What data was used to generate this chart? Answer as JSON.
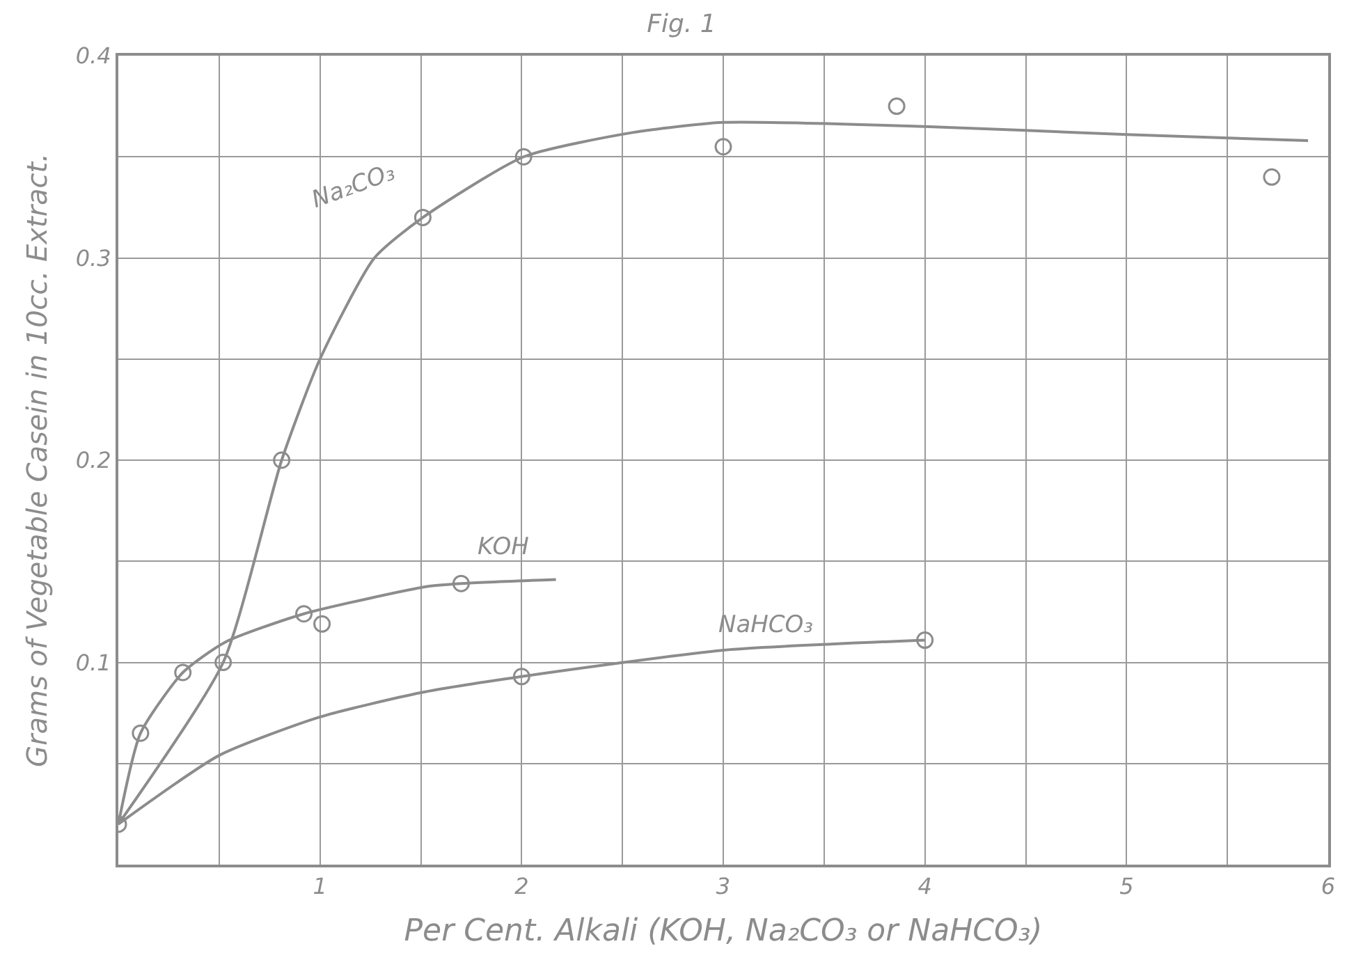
{
  "chart_data": {
    "type": "line",
    "title": "Fig. 1",
    "xlabel": "Per Cent. Alkali (KOH, Na₂CO₃ or NaHCO₃)",
    "ylabel": "Grams of Vegetable Casein in 10cc. Extract.",
    "series": [
      {
        "name": "Na₂CO₃",
        "color": "#8c8c8c",
        "marker": "none",
        "x": [
          0,
          0.52,
          0.81,
          1.0,
          1.27,
          1.51,
          2.01,
          2.55,
          3.0,
          4.0,
          5.0,
          5.9
        ],
        "values": [
          0.02,
          0.1,
          0.2,
          0.25,
          0.3,
          0.32,
          0.35,
          0.362,
          0.367,
          0.365,
          0.361,
          0.358
        ]
      },
      {
        "type": "scatter",
        "color": "#8c8c8c",
        "x": [
          0,
          0.52,
          0.81,
          1.51,
          2.01,
          3.0,
          3.86,
          5.72
        ],
        "values": [
          0.02,
          0.1,
          0.2,
          0.32,
          0.35,
          0.355,
          0.375,
          0.34
        ]
      },
      {
        "name": "KOH",
        "color": "#8c8c8c",
        "marker": "none",
        "x": [
          0,
          0.11,
          0.32,
          0.53,
          0.92,
          1.53,
          1.7,
          2.17
        ],
        "values": [
          0.02,
          0.065,
          0.095,
          0.11,
          0.124,
          0.1375,
          0.139,
          0.141
        ]
      },
      {
        "type": "scatter",
        "color": "#8c8c8c",
        "x": [
          0.11,
          0.32,
          0.92,
          1.01,
          1.7
        ],
        "values": [
          0.065,
          0.095,
          0.124,
          0.119,
          0.139
        ]
      },
      {
        "name": "NaHCO₃",
        "color": "#8c8c8c",
        "marker": "none",
        "x": [
          0,
          0.5,
          1.0,
          1.5,
          2.0,
          3.0,
          4.0
        ],
        "values": [
          0.02,
          0.054,
          0.073,
          0.085,
          0.093,
          0.106,
          0.111
        ]
      },
      {
        "type": "scatter",
        "color": "#8c8c8c",
        "x": [
          2.0,
          4.0
        ],
        "values": [
          0.093,
          0.111
        ]
      }
    ],
    "xlim": [
      0,
      6
    ],
    "ylim": [
      0,
      0.4
    ],
    "xticks": [
      {
        "value": 0.5,
        "label": null
      },
      1,
      {
        "value": 1.5,
        "label": null
      },
      2,
      {
        "value": 2.5,
        "label": null
      },
      3,
      {
        "value": 3.5,
        "label": null
      },
      4,
      {
        "value": 4.5,
        "label": null
      },
      5,
      {
        "value": 5.5,
        "label": null
      },
      6
    ],
    "yticks": [
      {
        "value": 0.05,
        "label": null
      },
      0.1,
      {
        "value": 0.15,
        "label": null
      },
      0.2,
      {
        "value": 0.25,
        "label": null
      },
      0.3,
      {
        "value": 0.35,
        "label": null
      },
      0.4
    ],
    "grid": true,
    "legend": false,
    "marker": "circle",
    "line_style": "solid"
  }
}
